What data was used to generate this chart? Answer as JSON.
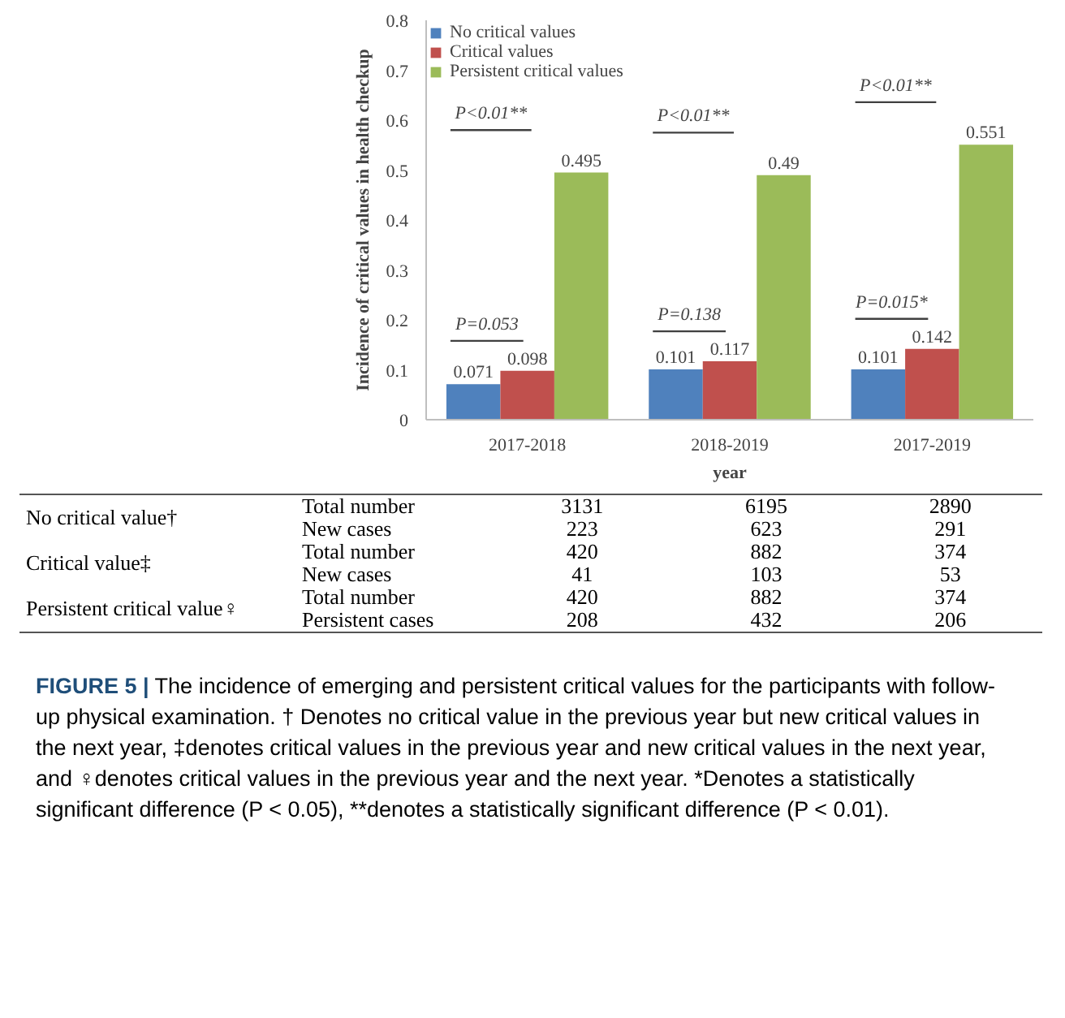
{
  "chart_data": [
    {
      "type": "bar",
      "xlabel": "year",
      "ylabel": "Incidence of critical values in health checkup",
      "categories": [
        "2017-2018",
        "2018-2019",
        "2017-2019"
      ],
      "series": [
        {
          "name": "No critical values",
          "color": "#4f81bd",
          "values": [
            0.071,
            0.101,
            0.101
          ]
        },
        {
          "name": "Critical values",
          "color": "#c0504d",
          "values": [
            0.098,
            0.117,
            0.142
          ]
        },
        {
          "name": "Persistent critical values",
          "color": "#9bbb59",
          "values": [
            0.495,
            0.49,
            0.551
          ]
        }
      ],
      "ylim": [
        0,
        0.8
      ],
      "yticks": [
        0,
        0.1,
        0.2,
        0.3,
        0.4,
        0.5,
        0.6,
        0.7,
        0.8
      ],
      "data_labels": true,
      "legend": "top left",
      "grid": false,
      "annotations": [
        "P=0.053",
        "P<0.01**",
        "P=0.138",
        "P<0.01**",
        "P=0.015*",
        "P<0.01**"
      ]
    },
    {
      "type": "other",
      "y_categories": [
        "Total number",
        "New cases",
        "Total number",
        "New cases",
        "Total number",
        "Persistent cases"
      ],
      "cell_labels": [
        [
          "3131",
          "6195",
          "2890"
        ],
        [
          "223",
          "623",
          "291"
        ],
        [
          "420",
          "882",
          "374"
        ],
        [
          "41",
          "103",
          "53"
        ],
        [
          "420",
          "882",
          "374"
        ],
        [
          "208",
          "432",
          "206"
        ]
      ],
      "annotations": [
        "No critical value†",
        "Critical value‡",
        "Persistent critical value♀"
      ]
    },
    {
      "type": "other",
      "title": "FIGURE 5 |",
      "annotations": [
        "The incidence of emerging and persistent critical values for the participants with follow-up physical examination. † Denotes no critical value in the previous year but new critical values in the next year, ‡denotes critical values in the previous year and new critical values in the next year, and ♀denotes critical values in the previous year and the next year. *Denotes a statistically significant difference (P < 0.05), **denotes a statistically significant difference (P < 0.01)."
      ]
    }
  ]
}
